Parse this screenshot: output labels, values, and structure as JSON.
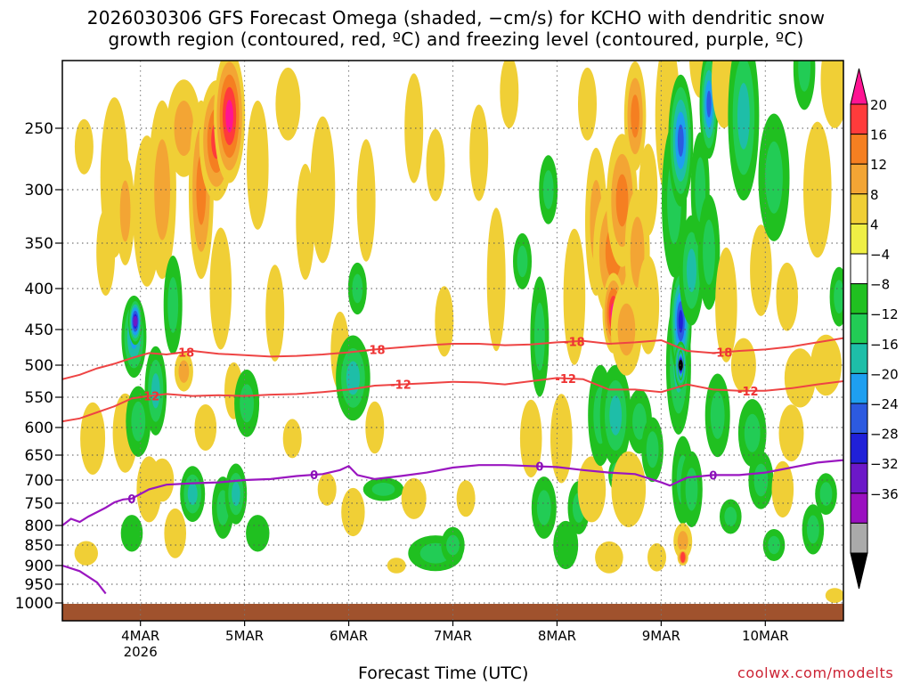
{
  "chart_data": {
    "type": "heatmap",
    "title_line1": "2026030306 GFS Forecast Omega (shaded, −cm/s) for KCHO with dendritic snow",
    "title_line2": "growth region (contoured, red, ºC) and freezing level (contoured, purple, ºC)",
    "xlabel": "Forecast Time (UTC)",
    "ylabel": "",
    "x_unit": "forecast hours from 2026-03-03 06Z",
    "x_range": [
      0,
      180
    ],
    "x_ticks": [
      {
        "hour": 18,
        "label": "4MAR",
        "sublabel": "2026"
      },
      {
        "hour": 42,
        "label": "5MAR"
      },
      {
        "hour": 66,
        "label": "6MAR"
      },
      {
        "hour": 90,
        "label": "7MAR"
      },
      {
        "hour": 114,
        "label": "8MAR"
      },
      {
        "hour": 138,
        "label": "9MAR"
      },
      {
        "hour": 162,
        "label": "10MAR"
      }
    ],
    "y_unit": "hPa",
    "y_range": [
      1010,
      200
    ],
    "y_ticks": [
      250,
      300,
      350,
      400,
      450,
      500,
      550,
      600,
      650,
      700,
      750,
      800,
      850,
      900,
      950,
      1000
    ],
    "colorbar": {
      "labels": [
        "20",
        "16",
        "12",
        "8",
        "4",
        "−4",
        "−8",
        "−12",
        "−16",
        "−20",
        "−24",
        "−28",
        "−32",
        "−36"
      ],
      "colors": [
        "#ff1493",
        "#ff3b3b",
        "#f57f21",
        "#f3a534",
        "#f0cf36",
        "#efef45",
        "#ffffff",
        "#20c020",
        "#22cc55",
        "#1ebea8",
        "#1e9ff0",
        "#2c5ae0",
        "#2020d8",
        "#6c18c8",
        "#9a10c0",
        "#aaaaaa",
        "#000000"
      ]
    },
    "dendritic_contours": [
      {
        "label": "-18",
        "label_hours": [
          28,
          72,
          118,
          152
        ],
        "hours": [
          0,
          4,
          8,
          12,
          16,
          20,
          24,
          30,
          36,
          42,
          48,
          54,
          60,
          66,
          72,
          78,
          84,
          90,
          96,
          102,
          108,
          114,
          120,
          126,
          132,
          138,
          144,
          150,
          156,
          162,
          168,
          174,
          180
        ],
        "pressures": [
          522,
          515,
          505,
          498,
          490,
          483,
          485,
          480,
          484,
          486,
          488,
          487,
          485,
          482,
          478,
          475,
          472,
          470,
          470,
          472,
          471,
          468,
          466,
          470,
          468,
          465,
          480,
          483,
          480,
          478,
          474,
          468,
          462
        ]
      },
      {
        "label": "-12",
        "label_hours": [
          20,
          78,
          116,
          158
        ],
        "hours": [
          0,
          4,
          8,
          12,
          16,
          20,
          24,
          30,
          36,
          42,
          48,
          54,
          60,
          66,
          72,
          78,
          84,
          90,
          96,
          102,
          108,
          114,
          120,
          126,
          132,
          138,
          144,
          150,
          156,
          162,
          168,
          174,
          180
        ],
        "pressures": [
          590,
          585,
          575,
          565,
          552,
          548,
          545,
          548,
          547,
          548,
          546,
          545,
          542,
          538,
          532,
          530,
          528,
          526,
          527,
          530,
          525,
          520,
          522,
          538,
          538,
          542,
          530,
          538,
          540,
          540,
          536,
          530,
          525
        ]
      }
    ],
    "freezing_contour": {
      "label": "0",
      "label_hours": [
        16,
        58,
        110,
        150
      ],
      "hours": [
        0,
        2,
        4,
        6,
        8,
        10,
        12,
        14,
        16,
        18,
        20,
        22,
        24,
        30,
        36,
        42,
        48,
        54,
        60,
        64,
        66,
        68,
        72,
        78,
        84,
        90,
        96,
        102,
        108,
        114,
        120,
        126,
        132,
        138,
        140,
        144,
        150,
        156,
        162,
        168,
        174,
        180
      ],
      "pressures": [
        800,
        785,
        792,
        780,
        770,
        760,
        748,
        742,
        740,
        730,
        720,
        715,
        710,
        707,
        705,
        700,
        698,
        692,
        688,
        680,
        672,
        690,
        698,
        692,
        685,
        675,
        670,
        670,
        672,
        674,
        680,
        685,
        688,
        705,
        712,
        695,
        690,
        690,
        685,
        675,
        665,
        660
      ]
    },
    "low_freezing_contour_hpa": {
      "hours": [
        0,
        4,
        8,
        10
      ],
      "pressures": [
        900,
        915,
        945,
        975
      ]
    },
    "ground_pressure_hpa": 1000,
    "omega_cells": [
      {
        "h": 5.5,
        "p": 870,
        "dh": 1.5,
        "dp": 60,
        "v": 6
      },
      {
        "h": 7,
        "p": 620,
        "dh": 1.6,
        "dp": 130,
        "v": 5
      },
      {
        "h": 5,
        "p": 265,
        "dh": 1.2,
        "dp": 45,
        "v": 5
      },
      {
        "h": 10,
        "p": 360,
        "dh": 1.2,
        "dp": 90,
        "v": 5
      },
      {
        "h": 12,
        "p": 290,
        "dh": 1.8,
        "dp": 140,
        "v": 6
      },
      {
        "h": 14.5,
        "p": 320,
        "dh": 1.2,
        "dp": 100,
        "v": 10
      },
      {
        "h": 14.5,
        "p": 610,
        "dh": 1.6,
        "dp": 140,
        "v": 7
      },
      {
        "h": 16,
        "p": 820,
        "dh": 1.4,
        "dp": 90,
        "v": -6
      },
      {
        "h": 16.5,
        "p": 460,
        "dh": 1.6,
        "dp": 110,
        "v": -16
      },
      {
        "h": 16.8,
        "p": 440,
        "dh": 0.9,
        "dp": 60,
        "v": -28
      },
      {
        "h": 17.5,
        "p": 590,
        "dh": 1.6,
        "dp": 120,
        "v": -11
      },
      {
        "h": 19.5,
        "p": 320,
        "dh": 1.8,
        "dp": 140,
        "v": 7
      },
      {
        "h": 20,
        "p": 720,
        "dh": 1.6,
        "dp": 140,
        "v": 6
      },
      {
        "h": 21.5,
        "p": 540,
        "dh": 1.4,
        "dp": 140,
        "v": -12
      },
      {
        "h": 23,
        "p": 300,
        "dh": 1.8,
        "dp": 160,
        "v": 9
      },
      {
        "h": 23,
        "p": 700,
        "dh": 1.5,
        "dp": 90,
        "v": 5
      },
      {
        "h": 25.5,
        "p": 420,
        "dh": 1.2,
        "dp": 120,
        "v": -9
      },
      {
        "h": 26,
        "p": 820,
        "dh": 1.4,
        "dp": 120,
        "v": 6
      },
      {
        "h": 28,
        "p": 250,
        "dh": 2.2,
        "dp": 80,
        "v": 9
      },
      {
        "h": 28,
        "p": 510,
        "dh": 1.2,
        "dp": 60,
        "v": 8
      },
      {
        "h": 30,
        "p": 730,
        "dh": 1.6,
        "dp": 120,
        "v": -13
      },
      {
        "h": 32,
        "p": 300,
        "dh": 1.6,
        "dp": 160,
        "v": 12
      },
      {
        "h": 33,
        "p": 600,
        "dh": 1.4,
        "dp": 80,
        "v": 6
      },
      {
        "h": 35.5,
        "p": 260,
        "dh": 2.2,
        "dp": 100,
        "v": 18
      },
      {
        "h": 36.5,
        "p": 400,
        "dh": 1.4,
        "dp": 140,
        "v": 6
      },
      {
        "h": 37,
        "p": 760,
        "dh": 1.4,
        "dp": 140,
        "v": -9
      },
      {
        "h": 38.5,
        "p": 240,
        "dh": 2,
        "dp": 110,
        "v": 20
      },
      {
        "h": 39.5,
        "p": 540,
        "dh": 1.2,
        "dp": 90,
        "v": 6
      },
      {
        "h": 40,
        "p": 730,
        "dh": 1.4,
        "dp": 130,
        "v": -12
      },
      {
        "h": 42.5,
        "p": 560,
        "dh": 1.6,
        "dp": 110,
        "v": -10
      },
      {
        "h": 45,
        "p": 280,
        "dh": 1.4,
        "dp": 110,
        "v": 7
      },
      {
        "h": 45,
        "p": 820,
        "dh": 1.5,
        "dp": 90,
        "v": -7
      },
      {
        "h": 49,
        "p": 430,
        "dh": 1.2,
        "dp": 120,
        "v": 5
      },
      {
        "h": 52,
        "p": 230,
        "dh": 1.6,
        "dp": 60,
        "v": 6
      },
      {
        "h": 53,
        "p": 620,
        "dh": 1.2,
        "dp": 70,
        "v": 5
      },
      {
        "h": 56,
        "p": 330,
        "dh": 1.2,
        "dp": 110,
        "v": 6
      },
      {
        "h": 60,
        "p": 300,
        "dh": 1.6,
        "dp": 130,
        "v": 6
      },
      {
        "h": 61,
        "p": 720,
        "dh": 1.2,
        "dp": 70,
        "v": 5
      },
      {
        "h": 64,
        "p": 480,
        "dh": 1.2,
        "dp": 110,
        "v": 6
      },
      {
        "h": 67,
        "p": 520,
        "dh": 2.2,
        "dp": 130,
        "v": -12
      },
      {
        "h": 68,
        "p": 400,
        "dh": 1.2,
        "dp": 60,
        "v": -10
      },
      {
        "h": 67,
        "p": 770,
        "dh": 1.5,
        "dp": 110,
        "v": 6
      },
      {
        "h": 70,
        "p": 310,
        "dh": 1.2,
        "dp": 110,
        "v": 6
      },
      {
        "h": 72,
        "p": 600,
        "dh": 1.2,
        "dp": 90,
        "v": 6
      },
      {
        "h": 74,
        "p": 720,
        "dh": 2.6,
        "dp": 50,
        "v": -10
      },
      {
        "h": 77,
        "p": 900,
        "dh": 1.2,
        "dp": 40,
        "v": 5
      },
      {
        "h": 81,
        "p": 250,
        "dh": 1.2,
        "dp": 90,
        "v": 5
      },
      {
        "h": 81,
        "p": 740,
        "dh": 1.6,
        "dp": 90,
        "v": 6
      },
      {
        "h": 86,
        "p": 280,
        "dh": 1.2,
        "dp": 60,
        "v": 5
      },
      {
        "h": 86,
        "p": 870,
        "dh": 3.5,
        "dp": 90,
        "v": -9
      },
      {
        "h": 88,
        "p": 440,
        "dh": 1.2,
        "dp": 90,
        "v": 5
      },
      {
        "h": 90,
        "p": 850,
        "dh": 1.5,
        "dp": 90,
        "v": -10
      },
      {
        "h": 93,
        "p": 740,
        "dh": 1.2,
        "dp": 80,
        "v": 5
      },
      {
        "h": 96,
        "p": 270,
        "dh": 1.2,
        "dp": 80,
        "v": 6
      },
      {
        "h": 100,
        "p": 390,
        "dh": 1.2,
        "dp": 160,
        "v": 6
      },
      {
        "h": 103,
        "p": 220,
        "dh": 1.2,
        "dp": 60,
        "v": 5
      },
      {
        "h": 106,
        "p": 370,
        "dh": 1.2,
        "dp": 60,
        "v": -9
      },
      {
        "h": 108,
        "p": 620,
        "dh": 1.4,
        "dp": 140,
        "v": 6
      },
      {
        "h": 110,
        "p": 460,
        "dh": 1.2,
        "dp": 160,
        "v": -10
      },
      {
        "h": 111,
        "p": 760,
        "dh": 1.6,
        "dp": 140,
        "v": -9
      },
      {
        "h": 112,
        "p": 300,
        "dh": 1.2,
        "dp": 60,
        "v": -8
      },
      {
        "h": 115,
        "p": 620,
        "dh": 1.4,
        "dp": 160,
        "v": 6
      },
      {
        "h": 116,
        "p": 850,
        "dh": 1.6,
        "dp": 120,
        "v": -7
      },
      {
        "h": 118,
        "p": 410,
        "dh": 1.4,
        "dp": 160,
        "v": 7
      },
      {
        "h": 119,
        "p": 760,
        "dh": 1.4,
        "dp": 120,
        "v": -9
      },
      {
        "h": 121,
        "p": 230,
        "dh": 1.2,
        "dp": 60,
        "v": 5
      },
      {
        "h": 122,
        "p": 720,
        "dh": 1.8,
        "dp": 140,
        "v": 7
      },
      {
        "h": 123,
        "p": 330,
        "dh": 1.4,
        "dp": 140,
        "v": 8
      },
      {
        "h": 124,
        "p": 580,
        "dh": 1.6,
        "dp": 170,
        "v": -9
      },
      {
        "h": 126,
        "p": 880,
        "dh": 1.8,
        "dp": 80,
        "v": 6
      },
      {
        "h": 127,
        "p": 360,
        "dh": 2.6,
        "dp": 140,
        "v": 13
      },
      {
        "h": 127,
        "p": 430,
        "dh": 1.4,
        "dp": 100,
        "v": 20
      },
      {
        "h": 127.5,
        "p": 580,
        "dh": 2,
        "dp": 170,
        "v": -15
      },
      {
        "h": 128,
        "p": 690,
        "dh": 1.2,
        "dp": 70,
        "v": -18
      },
      {
        "h": 129,
        "p": 310,
        "dh": 2,
        "dp": 120,
        "v": 13
      },
      {
        "h": 130,
        "p": 450,
        "dh": 2,
        "dp": 120,
        "v": 9
      },
      {
        "h": 130.5,
        "p": 720,
        "dh": 2.2,
        "dp": 160,
        "v": 6
      },
      {
        "h": 132,
        "p": 240,
        "dh": 1.4,
        "dp": 90,
        "v": 13
      },
      {
        "h": 132.5,
        "p": 360,
        "dh": 1.6,
        "dp": 130,
        "v": 9
      },
      {
        "h": 133,
        "p": 590,
        "dh": 1.6,
        "dp": 110,
        "v": -9
      },
      {
        "h": 135,
        "p": 300,
        "dh": 1.2,
        "dp": 80,
        "v": 7
      },
      {
        "h": 135,
        "p": 420,
        "dh": 1.4,
        "dp": 120,
        "v": 6
      },
      {
        "h": 136,
        "p": 640,
        "dh": 1.4,
        "dp": 120,
        "v": -9
      },
      {
        "h": 137,
        "p": 880,
        "dh": 1.2,
        "dp": 70,
        "v": 6
      },
      {
        "h": 139.5,
        "p": 240,
        "dh": 1.6,
        "dp": 130,
        "v": 6
      },
      {
        "h": 141,
        "p": 310,
        "dh": 1.6,
        "dp": 140,
        "v": -10
      },
      {
        "h": 142,
        "p": 500,
        "dh": 1.6,
        "dp": 200,
        "v": -14
      },
      {
        "h": 142,
        "p": 160,
        "dh": 1.2,
        "dp": 70,
        "v": -18
      },
      {
        "h": 142.5,
        "p": 260,
        "dh": 1.6,
        "dp": 110,
        "v": -22
      },
      {
        "h": 142.5,
        "p": 440,
        "dh": 1.4,
        "dp": 140,
        "v": -24
      },
      {
        "h": 142.5,
        "p": 500,
        "dh": 0.8,
        "dp": 70,
        "v": -33
      },
      {
        "h": 142.5,
        "p": 500,
        "dh": 0.4,
        "dp": 45,
        "v": -38
      },
      {
        "h": 143,
        "p": 700,
        "dh": 1.4,
        "dp": 180,
        "v": -10
      },
      {
        "h": 143,
        "p": 840,
        "dh": 1.2,
        "dp": 90,
        "v": 8
      },
      {
        "h": 143,
        "p": 880,
        "dh": 0.7,
        "dp": 40,
        "v": 17
      },
      {
        "h": 145,
        "p": 380,
        "dh": 1.6,
        "dp": 120,
        "v": -13
      },
      {
        "h": 145,
        "p": 720,
        "dh": 1.4,
        "dp": 160,
        "v": -9
      },
      {
        "h": 147,
        "p": 190,
        "dh": 1.4,
        "dp": 70,
        "v": 6
      },
      {
        "h": 147,
        "p": 300,
        "dh": 1.2,
        "dp": 100,
        "v": -10
      },
      {
        "h": 149,
        "p": 230,
        "dh": 1.2,
        "dp": 90,
        "v": -20
      },
      {
        "h": 149,
        "p": 360,
        "dh": 1.4,
        "dp": 120,
        "v": -9
      },
      {
        "h": 151,
        "p": 580,
        "dh": 1.6,
        "dp": 140,
        "v": -10
      },
      {
        "h": 152.5,
        "p": 210,
        "dh": 1.6,
        "dp": 80,
        "v": 6
      },
      {
        "h": 153,
        "p": 420,
        "dh": 1.4,
        "dp": 140,
        "v": 6
      },
      {
        "h": 154,
        "p": 780,
        "dh": 1.4,
        "dp": 80,
        "v": -8
      },
      {
        "h": 157,
        "p": 240,
        "dh": 2,
        "dp": 140,
        "v": -14
      },
      {
        "h": 157,
        "p": 500,
        "dh": 1.6,
        "dp": 80,
        "v": 6
      },
      {
        "h": 159,
        "p": 610,
        "dh": 1.8,
        "dp": 120,
        "v": -8
      },
      {
        "h": 161,
        "p": 380,
        "dh": 1.4,
        "dp": 100,
        "v": 5
      },
      {
        "h": 161,
        "p": 700,
        "dh": 1.6,
        "dp": 120,
        "v": -10
      },
      {
        "h": 164,
        "p": 290,
        "dh": 2,
        "dp": 110,
        "v": -11
      },
      {
        "h": 164,
        "p": 850,
        "dh": 1.4,
        "dp": 80,
        "v": -9
      },
      {
        "h": 166,
        "p": 720,
        "dh": 1.4,
        "dp": 120,
        "v": 6
      },
      {
        "h": 167,
        "p": 410,
        "dh": 1.4,
        "dp": 80,
        "v": 6
      },
      {
        "h": 168,
        "p": 610,
        "dh": 1.6,
        "dp": 100,
        "v": 6
      },
      {
        "h": 170,
        "p": 520,
        "dh": 2,
        "dp": 90,
        "v": 6
      },
      {
        "h": 171,
        "p": 200,
        "dh": 1.4,
        "dp": 70,
        "v": -10
      },
      {
        "h": 173,
        "p": 810,
        "dh": 1.4,
        "dp": 120,
        "v": -10
      },
      {
        "h": 174,
        "p": 300,
        "dh": 1.8,
        "dp": 120,
        "v": 6
      },
      {
        "h": 176,
        "p": 500,
        "dh": 2,
        "dp": 90,
        "v": 6
      },
      {
        "h": 176,
        "p": 730,
        "dh": 1.4,
        "dp": 90,
        "v": -9
      },
      {
        "h": 178,
        "p": 210,
        "dh": 1.8,
        "dp": 80,
        "v": 6
      },
      {
        "h": 178,
        "p": 980,
        "dh": 1.2,
        "dp": 40,
        "v": 5
      },
      {
        "h": 179,
        "p": 410,
        "dh": 1.2,
        "dp": 70,
        "v": -8
      }
    ]
  },
  "footer": {
    "credit": "coolwx.com/modelts"
  }
}
